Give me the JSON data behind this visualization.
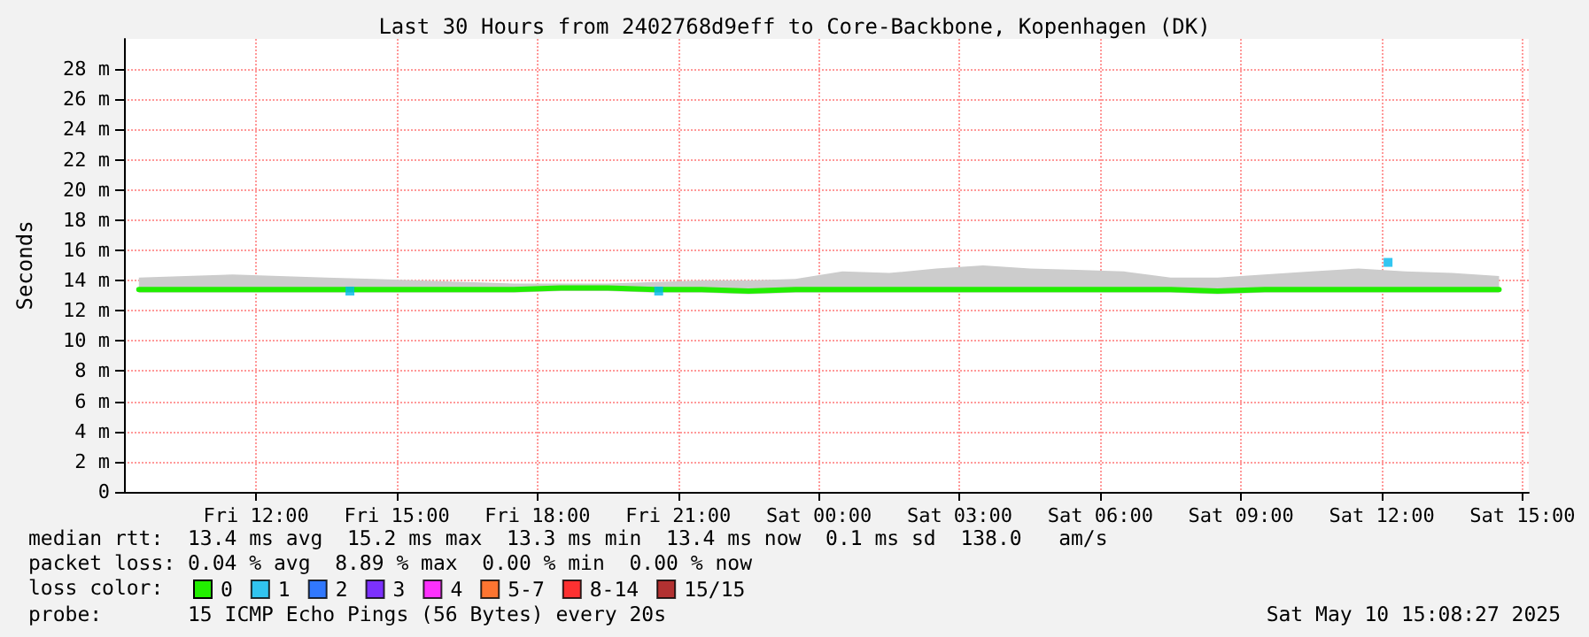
{
  "chart_data": {
    "type": "line",
    "title": "Last 30 Hours from 2402768d9eff to Core-Backbone, Kopenhagen (DK)",
    "ylabel": "Seconds",
    "legend_title": "loss color:",
    "legend": "bottom",
    "grid": true,
    "marker": "none",
    "line_style": "solid",
    "x": [
      "2025-05-09T09:30",
      "2025-05-09T10:30",
      "2025-05-09T11:30",
      "2025-05-09T12:30",
      "2025-05-09T13:30",
      "2025-05-09T14:30",
      "2025-05-09T15:30",
      "2025-05-09T16:30",
      "2025-05-09T17:30",
      "2025-05-09T18:30",
      "2025-05-09T19:30",
      "2025-05-09T20:30",
      "2025-05-09T21:30",
      "2025-05-09T22:30",
      "2025-05-09T23:30",
      "2025-05-10T00:30",
      "2025-05-10T01:30",
      "2025-05-10T02:30",
      "2025-05-10T03:30",
      "2025-05-10T04:30",
      "2025-05-10T05:30",
      "2025-05-10T06:30",
      "2025-05-10T07:30",
      "2025-05-10T08:30",
      "2025-05-10T09:30",
      "2025-05-10T10:30",
      "2025-05-10T11:30",
      "2025-05-10T12:30",
      "2025-05-10T13:30",
      "2025-05-10T14:30"
    ],
    "xlim": [
      "2025-05-09T09:11",
      "2025-05-10T15:08"
    ],
    "xticks": [
      {
        "value": "2025-05-09T12:00",
        "label": "Fri 12:00"
      },
      {
        "value": "2025-05-09T15:00",
        "label": "Fri 15:00"
      },
      {
        "value": "2025-05-09T18:00",
        "label": "Fri 18:00"
      },
      {
        "value": "2025-05-09T21:00",
        "label": "Fri 21:00"
      },
      {
        "value": "2025-05-10T00:00",
        "label": "Sat 00:00"
      },
      {
        "value": "2025-05-10T03:00",
        "label": "Sat 03:00"
      },
      {
        "value": "2025-05-10T06:00",
        "label": "Sat 06:00"
      },
      {
        "value": "2025-05-10T09:00",
        "label": "Sat 09:00"
      },
      {
        "value": "2025-05-10T12:00",
        "label": "Sat 12:00"
      },
      {
        "value": "2025-05-10T15:00",
        "label": "Sat 15:00"
      }
    ],
    "ylim": [
      0,
      30
    ],
    "yticks": [
      0,
      {
        "value": 2,
        "label": "2 m"
      },
      {
        "value": 4,
        "label": "4 m"
      },
      {
        "value": 6,
        "label": "6 m"
      },
      {
        "value": 8,
        "label": "8 m"
      },
      {
        "value": 10,
        "label": "10 m"
      },
      {
        "value": 12,
        "label": "12 m"
      },
      {
        "value": 14,
        "label": "14 m"
      },
      {
        "value": 16,
        "label": "16 m"
      },
      {
        "value": 18,
        "label": "18 m"
      },
      {
        "value": 20,
        "label": "20 m"
      },
      {
        "value": 22,
        "label": "22 m"
      },
      {
        "value": 24,
        "label": "24 m"
      },
      {
        "value": 26,
        "label": "26 m"
      },
      {
        "value": 28,
        "label": "28 m"
      }
    ],
    "series": [
      {
        "name": "0",
        "color": "#22ee00",
        "values": [
          13.4,
          13.4,
          13.4,
          13.4,
          13.4,
          13.4,
          13.4,
          13.4,
          13.4,
          13.5,
          13.5,
          13.4,
          13.4,
          13.3,
          13.4,
          13.4,
          13.4,
          13.4,
          13.4,
          13.4,
          13.4,
          13.4,
          13.4,
          13.3,
          13.4,
          13.4,
          13.4,
          13.4,
          13.4,
          13.4
        ],
        "lower": [
          13.2,
          13.2,
          13.2,
          13.2,
          13.2,
          13.2,
          13.2,
          13.2,
          13.2,
          13.3,
          13.3,
          13.2,
          13.2,
          13.1,
          13.2,
          13.2,
          13.2,
          13.2,
          13.2,
          13.2,
          13.2,
          13.2,
          13.2,
          13.1,
          13.2,
          13.2,
          13.2,
          13.2,
          13.2,
          13.2
        ],
        "upper": [
          14.2,
          14.3,
          14.4,
          14.3,
          14.2,
          14.1,
          14.0,
          13.9,
          13.8,
          13.8,
          13.8,
          13.9,
          14.0,
          14.0,
          14.1,
          14.6,
          14.5,
          14.8,
          15.0,
          14.8,
          14.7,
          14.6,
          14.2,
          14.2,
          14.4,
          14.6,
          14.8,
          14.6,
          14.5,
          14.3
        ]
      },
      {
        "name": "1",
        "color": "#00b8ee",
        "type": "scatter",
        "marker": "square",
        "x": [
          "2025-05-09T14:00",
          "2025-05-09T20:35",
          "2025-05-10T12:08"
        ],
        "values": [
          13.3,
          13.3,
          15.2
        ]
      },
      {
        "name": "2",
        "color": "#0059ff",
        "type": "scatter",
        "marker": "square",
        "values": [
          null,
          null,
          null,
          null,
          null,
          null,
          null,
          null,
          null,
          null,
          null,
          null,
          null,
          null,
          null,
          null,
          null,
          null,
          null,
          null,
          null,
          null,
          null,
          null,
          null,
          null,
          null,
          null,
          null,
          null
        ]
      },
      {
        "name": "3",
        "color": "#5e00ff",
        "type": "scatter",
        "marker": "square",
        "values": [
          null,
          null,
          null,
          null,
          null,
          null,
          null,
          null,
          null,
          null,
          null,
          null,
          null,
          null,
          null,
          null,
          null,
          null,
          null,
          null,
          null,
          null,
          null,
          null,
          null,
          null,
          null,
          null,
          null,
          null
        ]
      },
      {
        "name": "4",
        "color": "#ff00ff",
        "type": "scatter",
        "marker": "square",
        "values": [
          null,
          null,
          null,
          null,
          null,
          null,
          null,
          null,
          null,
          null,
          null,
          null,
          null,
          null,
          null,
          null,
          null,
          null,
          null,
          null,
          null,
          null,
          null,
          null,
          null,
          null,
          null,
          null,
          null,
          null
        ]
      },
      {
        "name": "5-7",
        "color": "#ff5500",
        "type": "scatter",
        "marker": "square",
        "values": [
          null,
          null,
          null,
          null,
          null,
          null,
          null,
          null,
          null,
          null,
          null,
          null,
          null,
          null,
          null,
          null,
          null,
          null,
          null,
          null,
          null,
          null,
          null,
          null,
          null,
          null,
          null,
          null,
          null,
          null
        ]
      },
      {
        "name": "8-14",
        "color": "#ff0000",
        "type": "scatter",
        "marker": "square",
        "values": [
          null,
          null,
          null,
          null,
          null,
          null,
          null,
          null,
          null,
          null,
          null,
          null,
          null,
          null,
          null,
          null,
          null,
          null,
          null,
          null,
          null,
          null,
          null,
          null,
          null,
          null,
          null,
          null,
          null,
          null
        ]
      },
      {
        "name": "15/15",
        "color": "#a10000",
        "type": "scatter",
        "marker": "square",
        "values": [
          null,
          null,
          null,
          null,
          null,
          null,
          null,
          null,
          null,
          null,
          null,
          null,
          null,
          null,
          null,
          null,
          null,
          null,
          null,
          null,
          null,
          null,
          null,
          null,
          null,
          null,
          null,
          null,
          null,
          null
        ]
      }
    ],
    "annotations": [
      "median rtt:  13.4 ms avg  15.2 ms max  13.3 ms min  13.4 ms now  0.1 ms sd  138.0   am/s",
      "packet loss: 0.04 % avg  8.89 % max  0.00 % min  0.00 % now",
      "probe:       15 ICMP Echo Pings (56 Bytes) every 20s",
      "Sat May 10 15:08:27 2025"
    ]
  }
}
